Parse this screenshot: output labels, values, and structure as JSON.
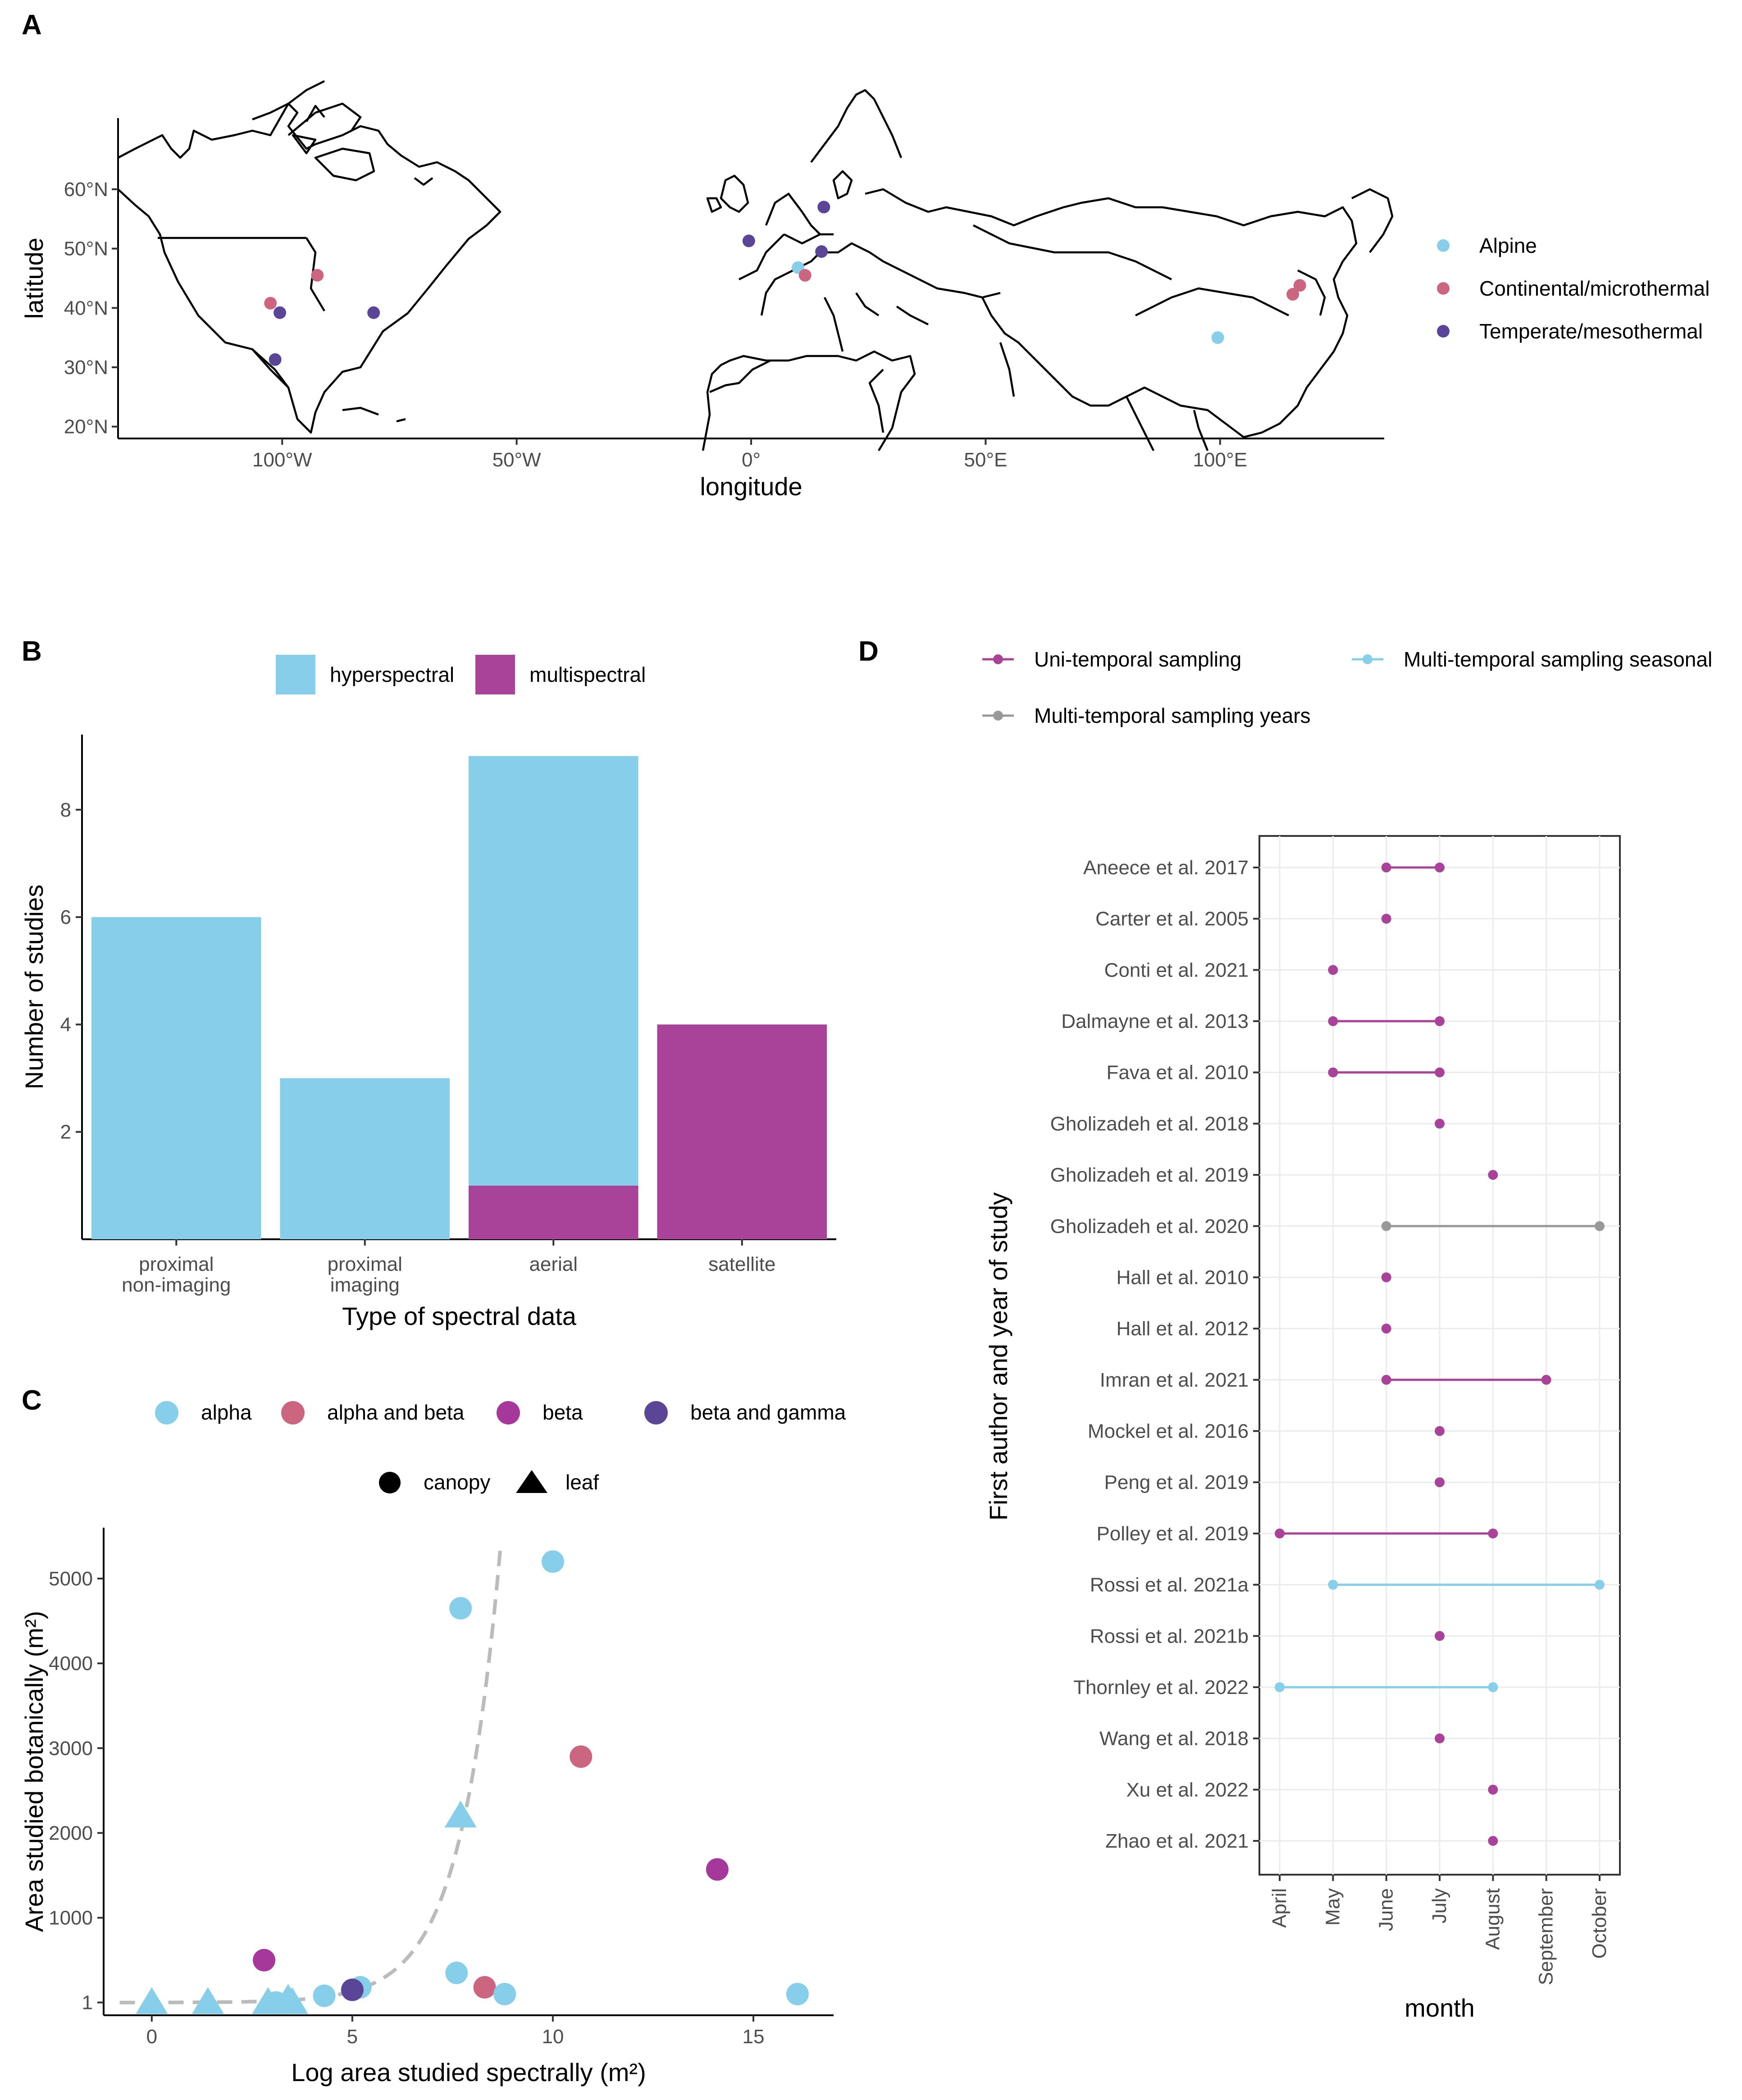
{
  "colors": {
    "alpine": "#87ceeb",
    "continental": "#cc6680",
    "temperate": "#5a4596",
    "hyperspectral": "#87ceeb",
    "multispectral": "#a84399",
    "alpha": "#87ceeb",
    "alpha_beta": "#cc6680",
    "beta": "#a6379b",
    "beta_gamma": "#5a4596",
    "uni": "#a84399",
    "seasonal": "#87ceeb",
    "years": "#999999",
    "trend": "#bbbbbb"
  },
  "chart_data": [
    {
      "panel": "A",
      "type": "scatter",
      "title": "",
      "xlabel": "longitude",
      "ylabel": "latitude",
      "xlim": [
        -135,
        135
      ],
      "ylim": [
        18,
        72
      ],
      "xticks": [
        -100,
        -50,
        0,
        50,
        100
      ],
      "xtick_labels": [
        "100°W",
        "50°W",
        "0°",
        "50°E",
        "100°E"
      ],
      "yticks": [
        20,
        30,
        40,
        50,
        60
      ],
      "ytick_labels": [
        "20°N",
        "30°N",
        "40°N",
        "50°N",
        "60°N"
      ],
      "legend": [
        {
          "label": "Alpine",
          "key": "alpine"
        },
        {
          "label": "Continental/microthermal",
          "key": "continental"
        },
        {
          "label": "Temperate/mesothermal",
          "key": "temperate"
        }
      ],
      "points": [
        {
          "lon": -92.5,
          "lat": 45.5,
          "group": "continental"
        },
        {
          "lon": -102.5,
          "lat": 40.8,
          "group": "continental"
        },
        {
          "lon": -100.5,
          "lat": 39.2,
          "group": "temperate"
        },
        {
          "lon": -101.5,
          "lat": 31.3,
          "group": "temperate"
        },
        {
          "lon": -80.5,
          "lat": 39.2,
          "group": "temperate"
        },
        {
          "lon": -0.5,
          "lat": 51.3,
          "group": "temperate"
        },
        {
          "lon": 15.5,
          "lat": 57.0,
          "group": "temperate"
        },
        {
          "lon": 15.0,
          "lat": 49.5,
          "group": "temperate"
        },
        {
          "lon": 10.0,
          "lat": 46.8,
          "group": "alpine"
        },
        {
          "lon": 11.5,
          "lat": 45.5,
          "group": "continental"
        },
        {
          "lon": 99.5,
          "lat": 35.0,
          "group": "alpine"
        },
        {
          "lon": 117.0,
          "lat": 43.8,
          "group": "continental"
        },
        {
          "lon": 115.5,
          "lat": 42.3,
          "group": "continental"
        }
      ]
    },
    {
      "panel": "B",
      "type": "bar",
      "stacked": true,
      "title": "",
      "xlabel": "Type of spectral data",
      "ylabel": "Number of studies",
      "categories": [
        "proximal\nnon-imaging",
        "proximal\nimaging",
        "aerial",
        "satellite"
      ],
      "ylim": [
        0,
        9.4
      ],
      "yticks": [
        2,
        4,
        6,
        8
      ],
      "legend": [
        {
          "label": "hyperspectral",
          "key": "hyperspectral"
        },
        {
          "label": "multispectral",
          "key": "multispectral"
        }
      ],
      "series": [
        {
          "name": "multispectral",
          "values": [
            0,
            0,
            1,
            4
          ]
        },
        {
          "name": "hyperspectral",
          "values": [
            6,
            3,
            8,
            0
          ]
        }
      ]
    },
    {
      "panel": "C",
      "type": "scatter",
      "title": "",
      "xlabel": "Log area studied spectrally (m²)",
      "ylabel": "Area studied botanically (m²)",
      "xlim": [
        -1.2,
        17
      ],
      "ylim": [
        -150,
        5600
      ],
      "xticks": [
        0,
        5,
        10,
        15
      ],
      "yticks": [
        1,
        1000,
        2000,
        3000,
        4000,
        5000
      ],
      "color_legend": [
        {
          "label": "alpha",
          "key": "alpha"
        },
        {
          "label": "alpha and beta",
          "key": "alpha_beta"
        },
        {
          "label": "beta",
          "key": "beta"
        },
        {
          "label": "beta and gamma",
          "key": "beta_gamma"
        }
      ],
      "shape_legend": [
        {
          "label": "canopy",
          "shape": "circle"
        },
        {
          "label": "leaf",
          "shape": "triangle"
        }
      ],
      "points": [
        {
          "x": 0.0,
          "y": 1,
          "group": "alpha",
          "shape": "triangle"
        },
        {
          "x": 1.4,
          "y": 1,
          "group": "alpha",
          "shape": "triangle"
        },
        {
          "x": 2.9,
          "y": 1,
          "group": "alpha",
          "shape": "triangle"
        },
        {
          "x": 3.1,
          "y": 1,
          "group": "alpha",
          "shape": "circle"
        },
        {
          "x": 3.4,
          "y": 40,
          "group": "alpha",
          "shape": "triangle"
        },
        {
          "x": 3.5,
          "y": 1,
          "group": "alpha",
          "shape": "triangle"
        },
        {
          "x": 4.3,
          "y": 80,
          "group": "alpha",
          "shape": "circle"
        },
        {
          "x": 5.2,
          "y": 180,
          "group": "alpha",
          "shape": "circle"
        },
        {
          "x": 5.0,
          "y": 150,
          "group": "beta_gamma",
          "shape": "circle"
        },
        {
          "x": 2.8,
          "y": 500,
          "group": "beta",
          "shape": "circle"
        },
        {
          "x": 7.6,
          "y": 350,
          "group": "alpha",
          "shape": "circle"
        },
        {
          "x": 7.7,
          "y": 2200,
          "group": "alpha",
          "shape": "triangle"
        },
        {
          "x": 7.7,
          "y": 4650,
          "group": "alpha",
          "shape": "circle"
        },
        {
          "x": 8.3,
          "y": 180,
          "group": "alpha_beta",
          "shape": "circle"
        },
        {
          "x": 8.8,
          "y": 100,
          "group": "alpha",
          "shape": "circle"
        },
        {
          "x": 10.0,
          "y": 5200,
          "group": "alpha",
          "shape": "circle"
        },
        {
          "x": 10.7,
          "y": 2900,
          "group": "alpha_beta",
          "shape": "circle"
        },
        {
          "x": 14.1,
          "y": 1570,
          "group": "beta",
          "shape": "circle"
        },
        {
          "x": 16.1,
          "y": 100,
          "group": "alpha",
          "shape": "circle"
        }
      ],
      "trend": {
        "form": "exponential",
        "a": 0.9,
        "b": 1.0,
        "x_range": [
          -0.8,
          8.7
        ]
      }
    },
    {
      "panel": "D",
      "type": "dumbbell",
      "title": "",
      "xlabel": "month",
      "ylabel": "First author and year of study",
      "months": [
        "April",
        "May",
        "June",
        "July",
        "August",
        "September",
        "October"
      ],
      "legend": [
        {
          "label": "Uni-temporal sampling",
          "key": "uni"
        },
        {
          "label": "Multi-temporal sampling seasonal",
          "key": "seasonal"
        },
        {
          "label": "Multi-temporal sampling years",
          "key": "years"
        }
      ],
      "studies": [
        {
          "label": "Aneece et al. 2017",
          "start": 6,
          "end": 7,
          "type": "uni"
        },
        {
          "label": "Carter et al. 2005",
          "start": 6,
          "end": 6,
          "type": "uni"
        },
        {
          "label": "Conti et al. 2021",
          "start": 5,
          "end": 5,
          "type": "uni"
        },
        {
          "label": "Dalmayne et al. 2013",
          "start": 5,
          "end": 7,
          "type": "uni"
        },
        {
          "label": "Fava et al. 2010",
          "start": 5,
          "end": 7,
          "type": "uni"
        },
        {
          "label": "Gholizadeh et al. 2018",
          "start": 7,
          "end": 7,
          "type": "uni"
        },
        {
          "label": "Gholizadeh et al. 2019",
          "start": 8,
          "end": 8,
          "type": "uni"
        },
        {
          "label": "Gholizadeh et al. 2020",
          "start": 6,
          "end": 10,
          "type": "years"
        },
        {
          "label": "Hall et al. 2010",
          "start": 6,
          "end": 6,
          "type": "uni"
        },
        {
          "label": "Hall et al. 2012",
          "start": 6,
          "end": 6,
          "type": "uni"
        },
        {
          "label": "Imran et al. 2021",
          "start": 6,
          "end": 9,
          "type": "uni"
        },
        {
          "label": "Mockel et al. 2016",
          "start": 7,
          "end": 7,
          "type": "uni"
        },
        {
          "label": "Peng et al. 2019",
          "start": 7,
          "end": 7,
          "type": "uni"
        },
        {
          "label": "Polley et al. 2019",
          "start": 4,
          "end": 8,
          "type": "uni"
        },
        {
          "label": "Rossi et al. 2021a",
          "start": 5,
          "end": 10,
          "type": "seasonal"
        },
        {
          "label": "Rossi et al. 2021b",
          "start": 7,
          "end": 7,
          "type": "uni"
        },
        {
          "label": "Thornley et al. 2022",
          "start": 4,
          "end": 8,
          "type": "seasonal"
        },
        {
          "label": "Wang et al. 2018",
          "start": 7,
          "end": 7,
          "type": "uni"
        },
        {
          "label": "Xu et al. 2022",
          "start": 8,
          "end": 8,
          "type": "uni"
        },
        {
          "label": "Zhao et al. 2021",
          "start": 8,
          "end": 8,
          "type": "uni"
        }
      ]
    }
  ]
}
